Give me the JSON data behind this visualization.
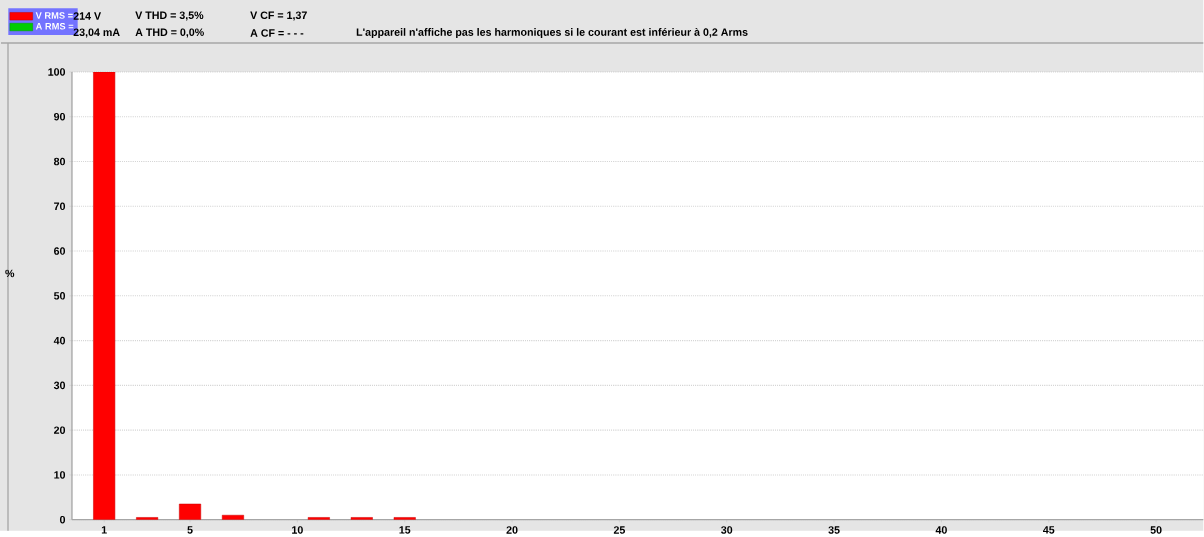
{
  "chart_data": {
    "type": "bar",
    "ylabel": "%",
    "x": [
      1,
      3,
      5,
      7,
      11,
      13,
      15
    ],
    "series": [
      {
        "name": "V RMS =",
        "color": "#ff0000",
        "values": [
          100,
          0.5,
          3.5,
          1,
          0.5,
          0.5,
          0.5
        ]
      },
      {
        "name": "A RMS =",
        "color": "#00cc00",
        "values": [
          null,
          null,
          null,
          null,
          null,
          null,
          null
        ]
      }
    ],
    "xlim": [
      -0.5,
      52.2
    ],
    "ylim": [
      0,
      100
    ],
    "xticks": [
      1,
      5,
      10,
      15,
      20,
      25,
      30,
      35,
      40,
      45,
      50
    ],
    "yticks": [
      0,
      10,
      20,
      30,
      40,
      50,
      60,
      70,
      80,
      90,
      100
    ],
    "grid": "y",
    "legend": "top left",
    "annotations": [
      "214 V",
      "23,04 mA",
      "V THD = 3,5%",
      "A THD = 0,0%",
      "V CF = 1,37",
      "A CF = - - -",
      "L'appareil n'affiche pas les harmoniques si le courant est inférieur à 0,2 Arms"
    ]
  }
}
